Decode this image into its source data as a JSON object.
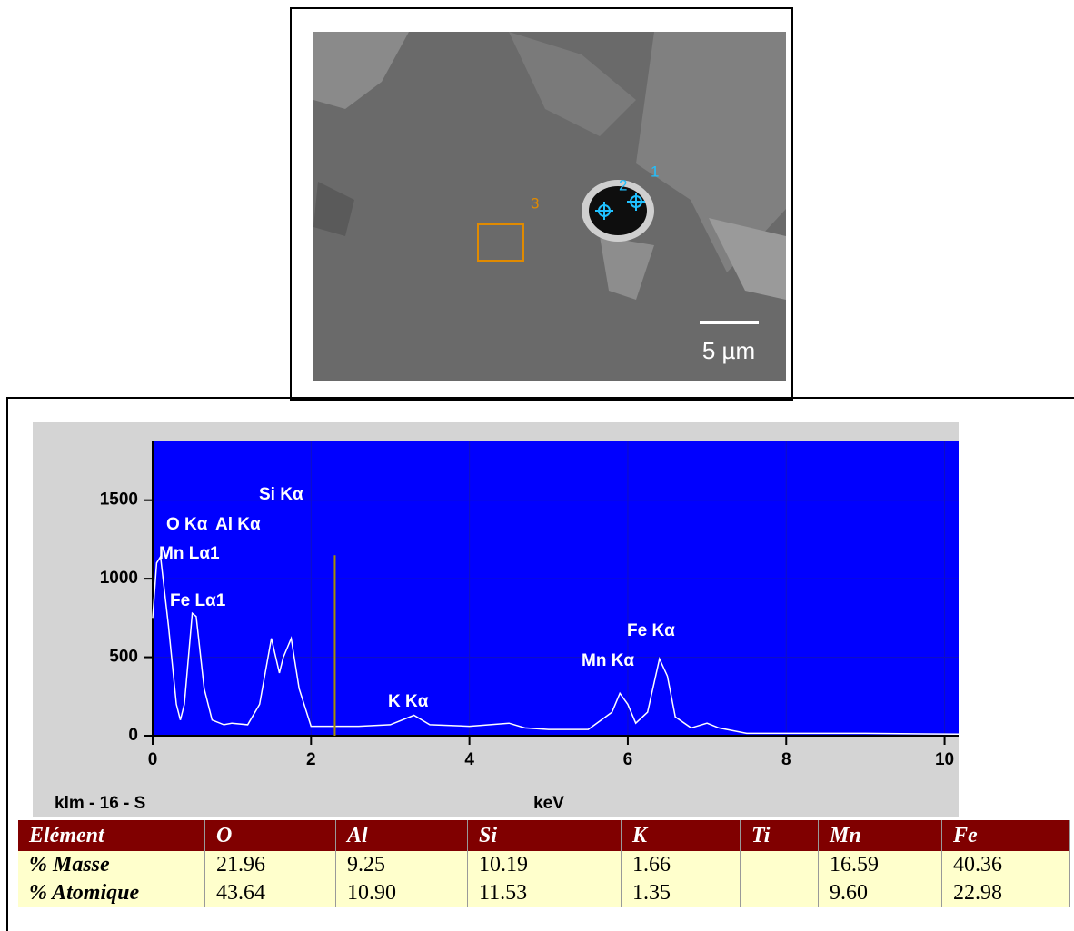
{
  "image": {
    "labels": [
      "1",
      "2",
      "3"
    ],
    "scale_bar": "5 µm"
  },
  "chart_data": {
    "type": "line",
    "color": "#ffffff",
    "x": [
      0.0,
      0.05,
      0.1,
      0.2,
      0.3,
      0.35,
      0.4,
      0.5,
      0.55,
      0.65,
      0.75,
      0.9,
      1.0,
      1.2,
      1.35,
      1.5,
      1.6,
      1.65,
      1.75,
      1.85,
      2.0,
      2.3,
      2.6,
      3.0,
      3.3,
      3.5,
      4.0,
      4.5,
      4.7,
      5.0,
      5.5,
      5.8,
      5.9,
      6.0,
      6.1,
      6.25,
      6.4,
      6.5,
      6.6,
      6.8,
      7.0,
      7.15,
      7.5,
      8.0,
      9.0,
      10.2
    ],
    "values": [
      750,
      1100,
      1140,
      700,
      200,
      100,
      200,
      780,
      760,
      300,
      100,
      70,
      80,
      70,
      200,
      620,
      400,
      500,
      620,
      300,
      60,
      60,
      60,
      70,
      130,
      70,
      60,
      80,
      50,
      40,
      40,
      150,
      270,
      200,
      80,
      150,
      490,
      380,
      120,
      50,
      80,
      50,
      15,
      15,
      15,
      10
    ],
    "cursor": [
      2.3,
      1150
    ],
    "annotations": [
      "Si Kα",
      "O Kα",
      "Al Kα",
      "Mn Lα1",
      "Fe Lα1",
      "K Kα",
      "Fe Kα",
      "Mn Kα"
    ],
    "xlabel": "keV",
    "sample": "klm - 16 - S",
    "xlim": [
      0,
      10.2
    ],
    "ylim": [
      0,
      1880
    ],
    "xticks": [
      0,
      2,
      4,
      6,
      8,
      10
    ],
    "yticks": [
      0,
      500,
      1000,
      1500
    ],
    "grid": true
  },
  "table": {
    "header": [
      "Elément",
      "O",
      "Al",
      "Si",
      "K",
      "Ti",
      "Mn",
      "Fe"
    ],
    "rows": [
      [
        "% Masse",
        "21.96",
        "9.25",
        "10.19",
        "1.66",
        null,
        "16.59",
        "40.36"
      ],
      [
        "% Atomique",
        "43.64",
        "10.90",
        "11.53",
        "1.35",
        null,
        "9.60",
        "22.98"
      ]
    ]
  }
}
